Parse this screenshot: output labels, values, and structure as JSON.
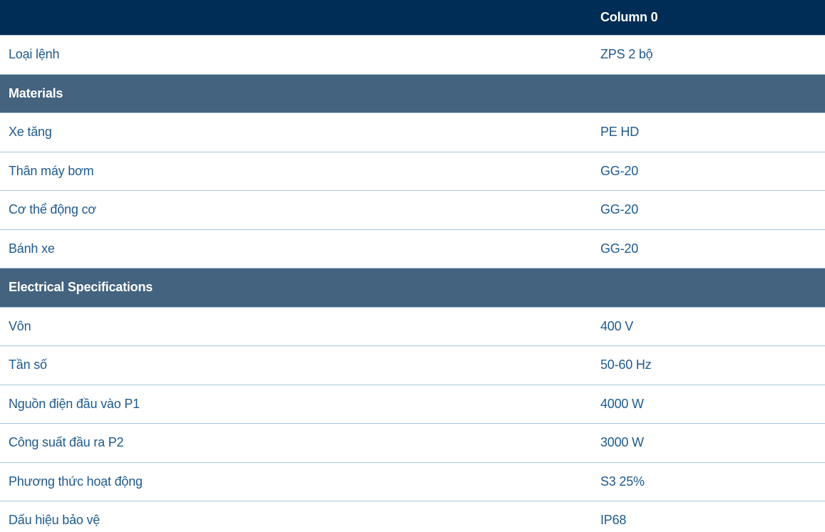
{
  "header": {
    "col0": "",
    "col1": "Column 0"
  },
  "rows": [
    {
      "type": "row",
      "label": "Loại lệnh",
      "value": "ZPS 2 bộ"
    },
    {
      "type": "section",
      "label": "Materials"
    },
    {
      "type": "row",
      "label": "Xe tăng",
      "value": "PE HD"
    },
    {
      "type": "row",
      "label": "Thân máy bơm",
      "value": "GG-20"
    },
    {
      "type": "row",
      "label": "Cơ thể động cơ",
      "value": "GG-20"
    },
    {
      "type": "row",
      "label": "Bánh xe",
      "value": "GG-20"
    },
    {
      "type": "section",
      "label": "Electrical Specifications"
    },
    {
      "type": "row",
      "label": "Vôn",
      "value": "400 V"
    },
    {
      "type": "row",
      "label": "Tần số",
      "value": "50-60 Hz"
    },
    {
      "type": "row",
      "label": "Nguồn điện đầu vào P1",
      "value": "4000 W"
    },
    {
      "type": "row",
      "label": "Công suất đầu ra P2",
      "value": "3000 W"
    },
    {
      "type": "row",
      "label": "Phương thức hoạt động",
      "value": "S3 25%"
    },
    {
      "type": "row",
      "label": "Dấu hiệu bảo vệ",
      "value": "IP68"
    }
  ],
  "colors": {
    "header_bg": "#002d55",
    "section_bg": "#43637f",
    "text": "#1f5a8e",
    "border": "#a9c6dd"
  }
}
